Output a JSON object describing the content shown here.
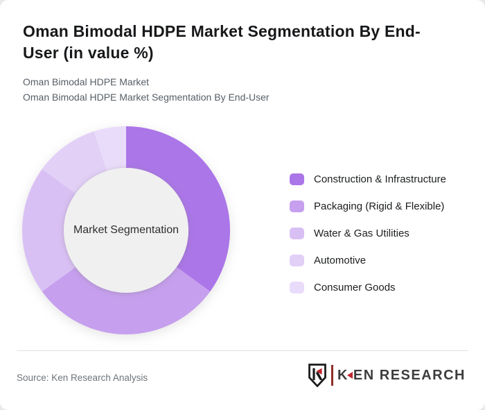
{
  "header": {
    "title": "Oman Bimodal HDPE Market Segmentation By End-User (in value %)",
    "subtitle_line1": "Oman Bimodal HDPE Market",
    "subtitle_line2": "Oman Bimodal HDPE Market Segmentation By End-User"
  },
  "chart_data": {
    "type": "pie",
    "variant": "donut",
    "title": "Oman Bimodal HDPE Market Segmentation By End-User (in value %)",
    "unit": "value %",
    "center_label": "Market Segmentation",
    "categories": [
      "Construction & Infrastructure",
      "Packaging (Rigid & Flexible)",
      "Water & Gas Utilities",
      "Automotive",
      "Consumer Goods"
    ],
    "values": [
      35,
      30,
      20,
      10,
      5
    ],
    "colors": [
      "#ab76e8",
      "#c69fee",
      "#d9c0f4",
      "#e2d0f7",
      "#e9dcfa"
    ],
    "hole_color": "#f0f0f0",
    "start_angle_deg": 0,
    "direction": "clockwise",
    "legend_position": "right"
  },
  "footer": {
    "source_text": "Source: Ken Research Analysis",
    "logo_brand_first_letter": "K",
    "logo_brand_rest": "EN RESEARCH",
    "logo_accent_color": "#c0272d"
  }
}
